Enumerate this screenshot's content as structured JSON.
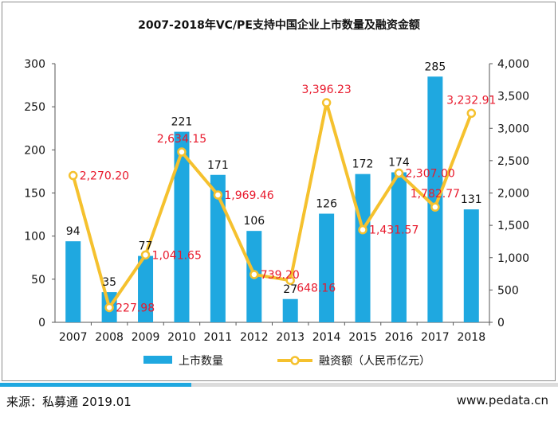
{
  "chart_data": {
    "type": "bar",
    "title": "2007-2018年VC/PE支持中国企业上市数量及融资金额",
    "categories": [
      "2007",
      "2008",
      "2009",
      "2010",
      "2011",
      "2012",
      "2013",
      "2014",
      "2015",
      "2016",
      "2017",
      "2018"
    ],
    "series": [
      {
        "name": "上市数量",
        "type": "bar",
        "axis": "left",
        "color": "#1fa8e0",
        "values": [
          94,
          35,
          77,
          221,
          171,
          106,
          27,
          126,
          172,
          174,
          285,
          131
        ],
        "labels": [
          "94",
          "35",
          "77",
          "221",
          "171",
          "106",
          "27",
          "126",
          "172",
          "174",
          "285",
          "131"
        ]
      },
      {
        "name": "融资额（人民币亿元）",
        "type": "line",
        "axis": "right",
        "color": "#f5c12e",
        "label_color": "#e8192c",
        "values": [
          2270.2,
          227.98,
          1041.65,
          2634.15,
          1969.46,
          739.2,
          648.16,
          3396.23,
          1431.57,
          2307.0,
          1782.77,
          3232.91
        ],
        "labels": [
          "2,270.20",
          "227.98",
          "1,041.65",
          "2,634.15",
          "1,969.46",
          "739.20",
          "648.16",
          "3,396.23",
          "1,431.57",
          "2,307.00",
          "1,782.77",
          "3,232.91"
        ]
      }
    ],
    "y_left": {
      "ylim": [
        0,
        300
      ],
      "ticks": [
        "0",
        "50",
        "100",
        "150",
        "200",
        "250",
        "300"
      ]
    },
    "y_right": {
      "ylim": [
        0,
        4000
      ],
      "ticks": [
        "0",
        "500",
        "1,000",
        "1,500",
        "2,000",
        "2,500",
        "3,000",
        "3,500",
        "4,000"
      ]
    },
    "grid": false,
    "legend_position": "bottom"
  },
  "footer": {
    "source": "来源：私募通 2019.01",
    "site": "www.pedata.cn"
  }
}
